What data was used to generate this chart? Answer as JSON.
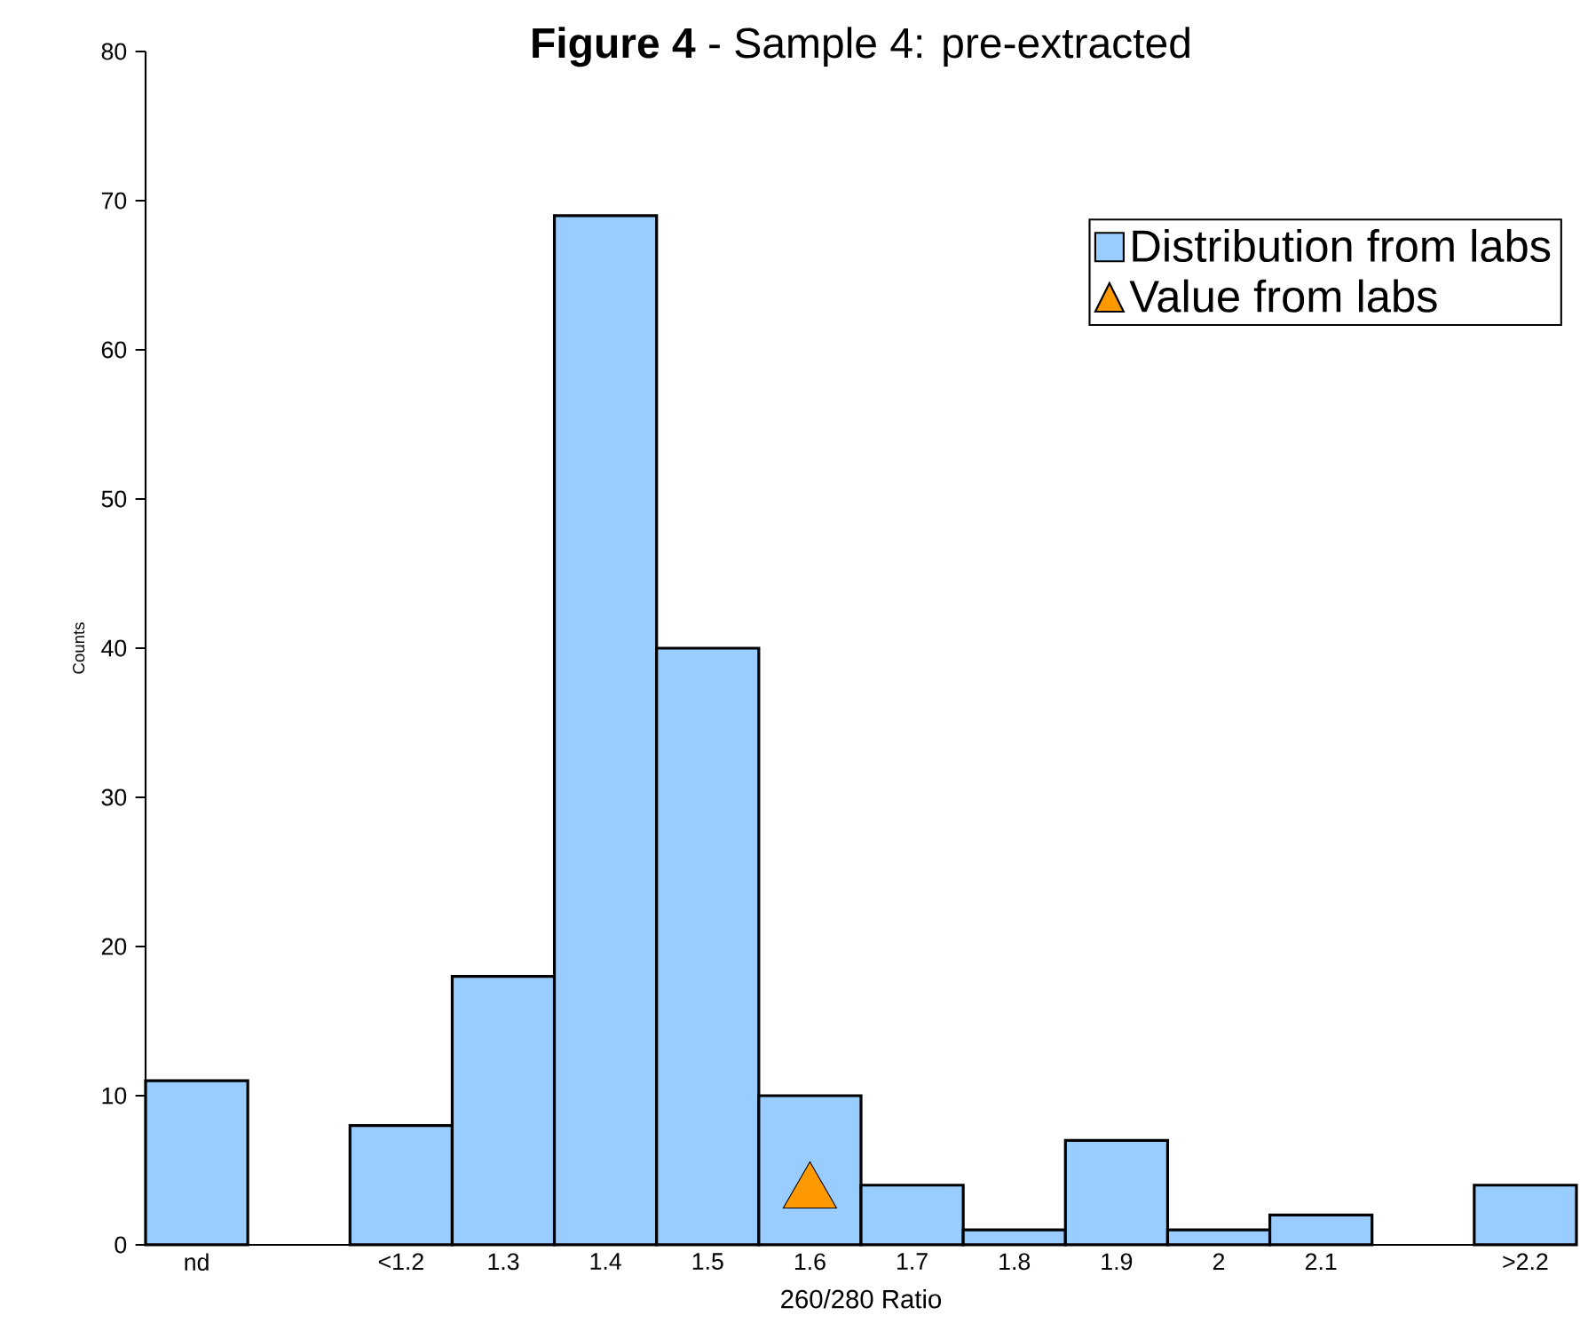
{
  "chart_data": {
    "type": "bar",
    "title": "**Figure 4** - Sample 4: pre-extracted",
    "xlabel": "260/280 Ratio",
    "ylabel": "Counts",
    "categories": [
      "nd",
      null,
      "<1.2",
      "1.3",
      "1.4",
      "1.5",
      "1.6",
      "1.7",
      "1.8",
      "1.9",
      "2",
      "2.1",
      null,
      ">2.2"
    ],
    "series": [
      {
        "name": "Distribution from labs",
        "color": "#99ccff",
        "values": [
          11,
          null,
          8,
          18,
          69,
          40,
          10,
          4,
          1,
          7,
          1,
          2,
          null,
          4
        ]
      },
      {
        "name": "Value from labs",
        "type": "scatter",
        "marker": "triangle",
        "color": "#ff9900",
        "x": [
          "1.6"
        ],
        "values": [
          3.5
        ]
      }
    ],
    "ylim": [
      0,
      80
    ],
    "yticks": [
      0,
      10,
      20,
      30,
      40,
      50,
      60,
      70,
      80
    ],
    "grid": false,
    "legend": "top right"
  }
}
